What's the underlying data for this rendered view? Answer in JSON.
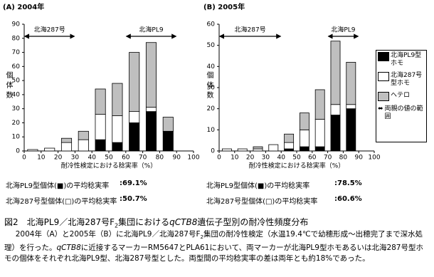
{
  "chart_data": [
    {
      "type": "histogram",
      "title": "(A) 2004年",
      "y_label": "個体数",
      "x_label": "耐冷性検定における稔実率（%）",
      "bins": [
        0,
        10,
        20,
        30,
        40,
        50,
        60,
        70,
        80,
        90,
        100
      ],
      "series": [
        {
          "color": "#000000",
          "values": [
            0,
            0,
            0,
            0,
            8,
            6,
            20,
            28,
            14,
            0
          ]
        },
        {
          "color": "#ffffff",
          "values": [
            1,
            2,
            6,
            8,
            18,
            19,
            8,
            3,
            0,
            0
          ]
        },
        {
          "color": "#bfbfbf",
          "values": [
            0,
            0,
            3,
            6,
            18,
            23,
            42,
            46,
            10,
            0
          ]
        }
      ],
      "xlim": [
        0,
        100
      ],
      "xticks": [
        0,
        10,
        20,
        30,
        40,
        50,
        60,
        70,
        80,
        90,
        100
      ],
      "ylim": [
        0,
        90
      ],
      "yticks": [
        0,
        10,
        20,
        30,
        40,
        50,
        60,
        70,
        80,
        90
      ],
      "ranges": [
        {
          "label": "北海287号",
          "from": 0,
          "to": 30
        },
        {
          "label": "北海PL9",
          "from": 60,
          "to": 90
        }
      ],
      "legend": false
    },
    {
      "type": "histogram",
      "title": "(B) 2005年",
      "y_label": "個体数",
      "x_label": "耐冷性検定における稔実率（%）",
      "bins": [
        0,
        10,
        20,
        30,
        40,
        50,
        60,
        70,
        80,
        90,
        100
      ],
      "series": [
        {
          "name": "北海PL9型ホモ",
          "color": "#000000",
          "values": [
            0,
            0,
            0,
            0,
            1,
            2,
            2,
            17,
            20,
            0
          ]
        },
        {
          "name": "北海287号型ホモ",
          "color": "#ffffff",
          "values": [
            1,
            1,
            1,
            3,
            3,
            8,
            13,
            5,
            2,
            0
          ]
        },
        {
          "name": "ヘテロ",
          "color": "#bfbfbf",
          "values": [
            0,
            0,
            1,
            0,
            4,
            8,
            14,
            30,
            20,
            0
          ]
        }
      ],
      "xlim": [
        0,
        100
      ],
      "xticks": [
        0,
        10,
        20,
        30,
        40,
        50,
        60,
        70,
        80,
        90,
        100
      ],
      "ylim": [
        0,
        60
      ],
      "yticks": [
        0,
        10,
        20,
        30,
        40,
        50,
        60
      ],
      "ranges": [
        {
          "label": "北海287号",
          "from": 0,
          "to": 40
        },
        {
          "label": "北海PL9",
          "from": 70,
          "to": 90
        }
      ],
      "legend": true,
      "range_legend": "両親の値の範囲"
    }
  ],
  "stats": [
    [
      {
        "label": "北海PL9型個体(■)の平均稔実率",
        "value": ":69.1%"
      },
      {
        "label": "北海287号型個体(□)の平均稔実率",
        "value": ":50.7%"
      }
    ],
    [
      {
        "label": "北海PL9型個体(■)の平均稔実率",
        "value": ":78.5%"
      },
      {
        "label": "北海287号型個体(□)の平均稔実率",
        "value": ":60.6%"
      }
    ]
  ],
  "caption": [
    "図2",
    "北海PL9／北海287号F",
    "2",
    "集団における",
    "qCTB8",
    "遺伝子型別の耐冷性頻度分布"
  ],
  "body": [
    "2004年（A）と2005年（B）に北海PL9／北海287号F",
    "2",
    "集団の耐冷性検定（水温19.4℃で幼穂形成～出穂完了まで深水処理）を行った。",
    "qCTB8",
    "に近接するマーカーRM5647とPLA61において、両マーカーが北海PL9型ホモあるいは北海287号型ホモの個体をそれぞれ北海PL9型、北海287号型とした。両型間の平均稔実率の差は両年とも約18%であった。"
  ]
}
